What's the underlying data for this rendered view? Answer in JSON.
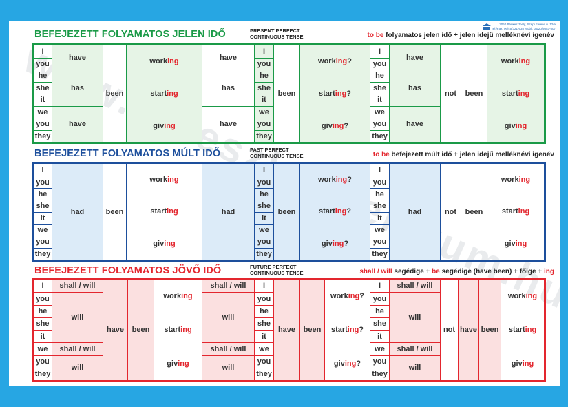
{
  "publisher": {
    "lines": [
      "2060 Bánkeszthely, Szépi Ferenc u. 12/a",
      "Tel./Fax: 06/45/321-635 Mobil: 06/20/9853-507"
    ]
  },
  "watermark": "www.taneszkozcentrum.hu",
  "sections": [
    {
      "id": "present",
      "title": "BEFEJEZETT FOLYAMATOS JELEN IDŐ",
      "subtitle": [
        "PRESENT PERFECT",
        "CONTINUOUS TENSE"
      ],
      "formula": [
        {
          "t": "to be",
          "hl": true
        },
        {
          "t": " folyamatos jelen idő  +  jelen idejű melléknévi igenév",
          "hl": false
        }
      ],
      "pronouns": [
        "I",
        "you",
        "he",
        "she",
        "it",
        "we",
        "you",
        "they"
      ],
      "aux_affirm": [
        "have",
        "has",
        "have"
      ],
      "aux_question": [
        "have",
        "has",
        "have"
      ],
      "aux_negative": [
        "have",
        "has",
        "have"
      ],
      "been": "been",
      "not": "not",
      "verbs": [
        {
          "stem": "work",
          "ing": "ing"
        },
        {
          "stem": "start",
          "ing": "ing"
        },
        {
          "stem": "giv",
          "ing": "ing"
        }
      ]
    },
    {
      "id": "past",
      "title": "BEFEJEZETT FOLYAMATOS MÚLT IDŐ",
      "subtitle": [
        "PAST PERFECT",
        "CONTINUOUS TENSE"
      ],
      "formula": [
        {
          "t": "to be",
          "hl": true
        },
        {
          "t": " befejezett múlt idő  +  jelen idejű melléknévi igenév",
          "hl": false
        }
      ],
      "pronouns": [
        "I",
        "you",
        "he",
        "she",
        "it",
        "we",
        "you",
        "they"
      ],
      "aux_single": "had",
      "been": "been",
      "not": "not",
      "verbs": [
        {
          "stem": "work",
          "ing": "ing"
        },
        {
          "stem": "start",
          "ing": "ing"
        },
        {
          "stem": "giv",
          "ing": "ing"
        }
      ]
    },
    {
      "id": "future",
      "title": "BEFEJEZETT FOLYAMATOS JÖVŐ IDŐ",
      "subtitle": [
        "FUTURE PERFECT",
        "CONTINUOUS TENSE"
      ],
      "formula": [
        {
          "t": "shall / will",
          "hl": true
        },
        {
          "t": " segédige  +  ",
          "hl": false
        },
        {
          "t": "be",
          "hl": true
        },
        {
          "t": " segédige (have been)  +  főige  +  ",
          "hl": false
        },
        {
          "t": "ing",
          "hl": true
        }
      ],
      "pronouns": [
        "I",
        "you",
        "he",
        "she",
        "it",
        "we",
        "you",
        "they"
      ],
      "aux_future": [
        "shall / will",
        "will",
        "shall / will",
        "will"
      ],
      "have": "have",
      "been": "been",
      "not": "not",
      "verbs": [
        {
          "stem": "work",
          "ing": "ing"
        },
        {
          "stem": "start",
          "ing": "ing"
        },
        {
          "stem": "giv",
          "ing": "ing"
        }
      ]
    }
  ],
  "colors": {
    "present_border": "#1a9a47",
    "present_title": "#1a9a47",
    "present_fill": "#e6f4e6",
    "past_border": "#1d4f9c",
    "past_title": "#1d4f9c",
    "past_fill": "#dcebf8",
    "future_border": "#e3262e",
    "future_title": "#e3262e",
    "future_fill": "#fbe0e0",
    "highlight": "#e3262e"
  }
}
